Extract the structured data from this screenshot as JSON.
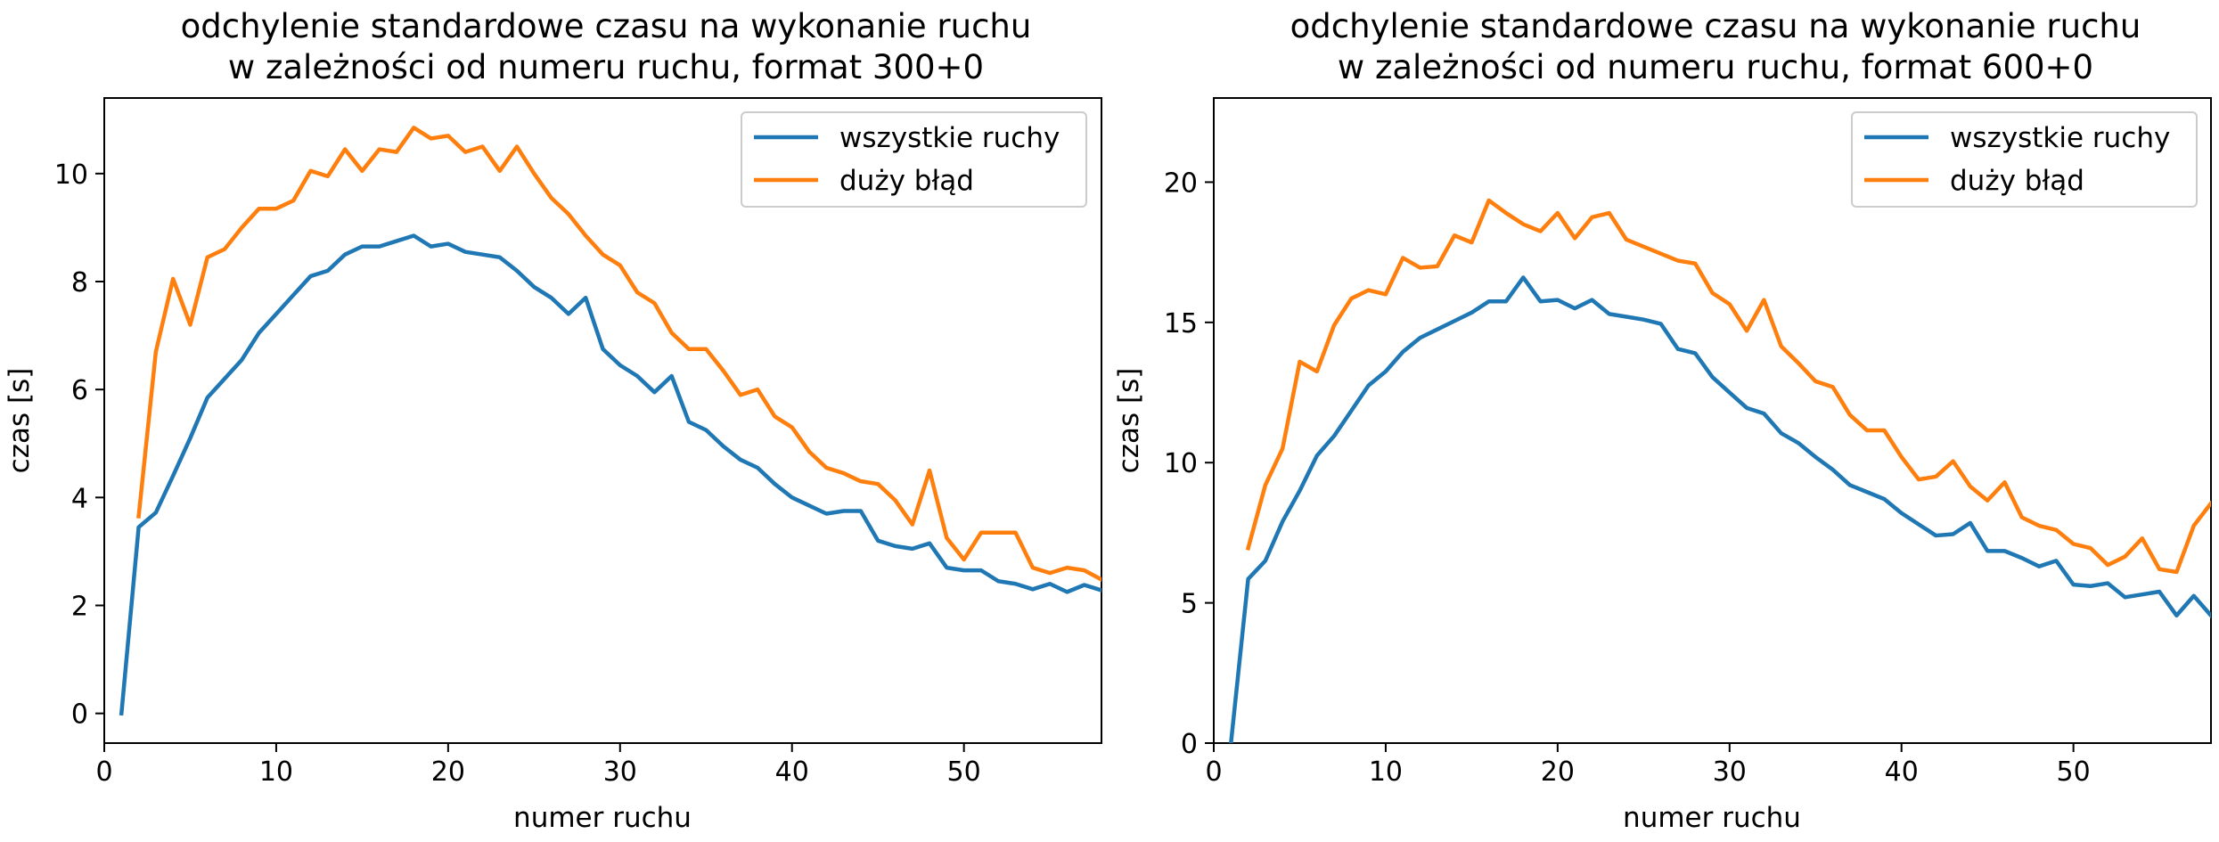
{
  "chart_data": [
    {
      "type": "line",
      "title": "odchylenie standardowe czasu na wykonanie ruchu\nw zależności od numeru ruchu, format 300+0",
      "title_lines": [
        "odchylenie standardowe czasu na wykonanie ruchu",
        "w zależności od numeru ruchu, format 300+0"
      ],
      "xlabel": "numer ruchu",
      "ylabel": "czas [s]",
      "xlim": [
        0,
        58
      ],
      "ylim": [
        -0.55,
        11.4
      ],
      "xticks": [
        0,
        10,
        20,
        30,
        40,
        50
      ],
      "yticks": [
        0,
        2,
        4,
        6,
        8,
        10
      ],
      "grid": false,
      "legend_position": "top-right",
      "series": [
        {
          "name": "wszystkie ruchy",
          "color": "#1f77b4",
          "x": [
            1,
            2,
            3,
            4,
            5,
            6,
            7,
            8,
            9,
            10,
            11,
            12,
            13,
            14,
            15,
            16,
            17,
            18,
            19,
            20,
            21,
            22,
            23,
            24,
            25,
            26,
            27,
            28,
            29,
            30,
            31,
            32,
            33,
            34,
            35,
            36,
            37,
            38,
            39,
            40,
            41,
            42,
            43,
            44,
            45,
            46,
            47,
            48,
            49,
            50,
            51,
            52,
            53,
            54,
            55,
            56,
            57,
            58
          ],
          "values": [
            0.0,
            3.45,
            3.72,
            4.4,
            5.1,
            5.85,
            6.2,
            6.55,
            7.05,
            7.4,
            7.75,
            8.1,
            8.2,
            8.5,
            8.65,
            8.65,
            8.75,
            8.85,
            8.65,
            8.7,
            8.55,
            8.5,
            8.45,
            8.2,
            7.9,
            7.7,
            7.4,
            7.7,
            6.75,
            6.45,
            6.25,
            5.95,
            6.25,
            5.4,
            5.25,
            4.95,
            4.7,
            4.55,
            4.25,
            4.0,
            3.85,
            3.7,
            3.75,
            3.75,
            3.2,
            3.1,
            3.05,
            3.15,
            2.7,
            2.65,
            2.65,
            2.45,
            2.4,
            2.3,
            2.4,
            2.25,
            2.38,
            2.28
          ]
        },
        {
          "name": "duży błąd",
          "color": "#ff7f0e",
          "x": [
            2,
            3,
            4,
            5,
            6,
            7,
            8,
            9,
            10,
            11,
            12,
            13,
            14,
            15,
            16,
            17,
            18,
            19,
            20,
            21,
            22,
            23,
            24,
            25,
            26,
            27,
            28,
            29,
            30,
            31,
            32,
            33,
            34,
            35,
            36,
            37,
            38,
            39,
            40,
            41,
            42,
            43,
            44,
            45,
            46,
            47,
            48,
            49,
            50,
            51,
            52,
            53,
            54,
            55,
            56,
            57,
            58
          ],
          "values": [
            3.65,
            6.7,
            8.05,
            7.2,
            8.45,
            8.6,
            9.0,
            9.35,
            9.35,
            9.5,
            10.05,
            9.95,
            10.45,
            10.05,
            10.45,
            10.4,
            10.85,
            10.65,
            10.7,
            10.4,
            10.5,
            10.05,
            10.5,
            10.0,
            9.55,
            9.25,
            8.85,
            8.5,
            8.3,
            7.8,
            7.6,
            7.05,
            6.75,
            6.75,
            6.35,
            5.9,
            6.0,
            5.5,
            5.3,
            4.85,
            4.55,
            4.45,
            4.3,
            4.25,
            3.95,
            3.5,
            4.5,
            3.25,
            2.85,
            3.35,
            3.35,
            3.35,
            2.7,
            2.6,
            2.7,
            2.65,
            2.48
          ]
        }
      ]
    },
    {
      "type": "line",
      "title": "odchylenie standardowe czasu na wykonanie ruchu\nw zależności od numeru ruchu, format 600+0",
      "title_lines": [
        "odchylenie standardowe czasu na wykonanie ruchu",
        "w zależności od numeru ruchu, format 600+0"
      ],
      "xlabel": "numer ruchu",
      "ylabel": "czas [s]",
      "xlim": [
        0,
        58
      ],
      "ylim": [
        0,
        23
      ],
      "xticks": [
        0,
        10,
        20,
        30,
        40,
        50
      ],
      "yticks": [
        0,
        5,
        10,
        15,
        20
      ],
      "grid": false,
      "legend_position": "top-right",
      "series": [
        {
          "name": "wszystkie ruchy",
          "color": "#1f77b4",
          "x": [
            1,
            2,
            3,
            4,
            5,
            6,
            7,
            8,
            9,
            10,
            11,
            12,
            13,
            14,
            15,
            16,
            17,
            18,
            19,
            20,
            21,
            22,
            23,
            24,
            25,
            26,
            27,
            28,
            29,
            30,
            31,
            32,
            33,
            34,
            35,
            36,
            37,
            38,
            39,
            40,
            41,
            42,
            43,
            44,
            45,
            46,
            47,
            48,
            49,
            50,
            51,
            52,
            53,
            54,
            55,
            56,
            57,
            58
          ],
          "values": [
            0.0,
            5.85,
            6.5,
            7.9,
            9.0,
            10.25,
            10.95,
            11.85,
            12.75,
            13.25,
            13.95,
            14.45,
            14.75,
            15.05,
            15.35,
            15.75,
            15.75,
            16.6,
            15.75,
            15.8,
            15.5,
            15.8,
            15.3,
            15.2,
            15.1,
            14.95,
            14.05,
            13.9,
            13.05,
            12.5,
            11.95,
            11.75,
            11.05,
            10.7,
            10.2,
            9.75,
            9.2,
            8.95,
            8.7,
            8.2,
            7.8,
            7.4,
            7.45,
            7.85,
            6.85,
            6.85,
            6.6,
            6.3,
            6.5,
            5.65,
            5.6,
            5.7,
            5.2,
            5.3,
            5.4,
            4.55,
            5.25,
            4.55
          ]
        },
        {
          "name": "duży błąd",
          "color": "#ff7f0e",
          "x": [
            2,
            3,
            4,
            5,
            6,
            7,
            8,
            9,
            10,
            11,
            12,
            13,
            14,
            15,
            16,
            17,
            18,
            19,
            20,
            21,
            22,
            23,
            24,
            25,
            26,
            27,
            28,
            29,
            30,
            31,
            32,
            33,
            34,
            35,
            36,
            37,
            38,
            39,
            40,
            41,
            42,
            43,
            44,
            45,
            46,
            47,
            48,
            49,
            50,
            51,
            52,
            53,
            54,
            55,
            56,
            57,
            58
          ],
          "values": [
            6.95,
            9.2,
            10.5,
            13.6,
            13.25,
            14.9,
            15.85,
            16.15,
            16.0,
            17.3,
            16.95,
            17.0,
            18.1,
            17.85,
            19.35,
            18.9,
            18.5,
            18.25,
            18.9,
            18.0,
            18.75,
            18.9,
            17.95,
            17.7,
            17.45,
            17.2,
            17.1,
            16.05,
            15.65,
            14.7,
            15.8,
            14.15,
            13.55,
            12.9,
            12.7,
            11.7,
            11.15,
            11.15,
            10.2,
            9.4,
            9.5,
            10.05,
            9.15,
            8.65,
            9.3,
            8.05,
            7.75,
            7.6,
            7.1,
            6.95,
            6.35,
            6.65,
            7.3,
            6.2,
            6.1,
            7.75,
            8.55
          ]
        }
      ]
    }
  ]
}
